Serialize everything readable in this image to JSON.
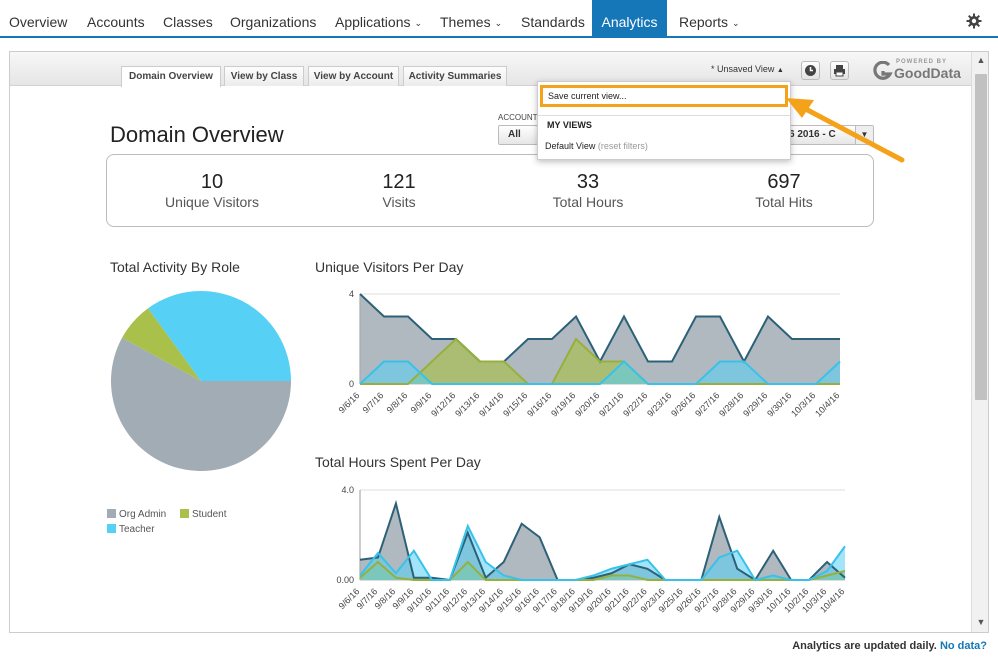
{
  "nav": {
    "items": [
      {
        "label": "Overview",
        "caret": false
      },
      {
        "label": "Accounts",
        "caret": false
      },
      {
        "label": "Classes",
        "caret": false
      },
      {
        "label": "Organizations",
        "caret": false
      },
      {
        "label": "Applications",
        "caret": true
      },
      {
        "label": "Themes",
        "caret": true
      },
      {
        "label": "Standards",
        "caret": false
      },
      {
        "label": "Analytics",
        "caret": false
      },
      {
        "label": "Reports",
        "caret": true
      }
    ],
    "active": "Analytics",
    "settings_icon": "gear-icon",
    "caret_icon": "chevron-down-icon"
  },
  "toolbar": {
    "tabs": [
      "Domain Overview",
      "View by Class",
      "View by Account",
      "Activity Summaries"
    ],
    "active_tab": "Domain Overview",
    "view_label": "* Unsaved View",
    "view_caret": "▲",
    "schedule_icon": "clock-icon",
    "print_icon": "printer-icon",
    "brand_small": "POWERED BY",
    "brand_big": "GoodData"
  },
  "dropdown": {
    "save_label": "Save current view...",
    "section_header": "MY VIEWS",
    "default_view": "Default View",
    "default_note": "(reset filters)"
  },
  "page": {
    "title": "Domain Overview",
    "filter_label": "ACCOUNT",
    "filter_value": "All",
    "date_value": "6 2016 - C",
    "date_caret": "▼"
  },
  "kpis": [
    {
      "value": "10",
      "label": "Unique Visitors"
    },
    {
      "value": "121",
      "label": "Visits"
    },
    {
      "value": "33",
      "label": "Total Hours"
    },
    {
      "value": "697",
      "label": "Total Hits"
    }
  ],
  "colors": {
    "org_admin": "#a2acb5",
    "student": "#a9c04a",
    "teacher": "#56d0f5",
    "accent": "#1576b8",
    "highlight": "#f5a21b"
  },
  "footer": {
    "text": "Analytics are updated daily.",
    "link": "No data?"
  },
  "chart_data": [
    {
      "type": "pie",
      "title": "Total Activity By Role",
      "slices": [
        {
          "name": "Org Admin",
          "value": 58
        },
        {
          "name": "Student",
          "value": 7
        },
        {
          "name": "Teacher",
          "value": 35
        }
      ],
      "legend": "bottom-left"
    },
    {
      "type": "area",
      "title": "Unique Visitors Per Day",
      "ylim": [
        0,
        4
      ],
      "yticks": [
        "4",
        "0"
      ],
      "categories": [
        "9/6/16",
        "9/7/16",
        "9/8/16",
        "9/9/16",
        "9/12/16",
        "9/13/16",
        "9/14/16",
        "9/15/16",
        "9/16/16",
        "9/19/16",
        "9/20/16",
        "9/21/16",
        "9/22/16",
        "9/23/16",
        "9/26/16",
        "9/27/16",
        "9/28/16",
        "9/29/16",
        "9/30/16",
        "10/3/16",
        "10/4/16"
      ],
      "series": [
        {
          "name": "Org Admin",
          "values": [
            4,
            3,
            3,
            2,
            2,
            1,
            1,
            2,
            2,
            3,
            1,
            3,
            1,
            1,
            3,
            3,
            1,
            3,
            2,
            2,
            2
          ]
        },
        {
          "name": "Student",
          "values": [
            0,
            0,
            0,
            1,
            2,
            1,
            1,
            0,
            0,
            2,
            1,
            1,
            0,
            0,
            0,
            0,
            0,
            0,
            0,
            0,
            0
          ]
        },
        {
          "name": "Teacher",
          "values": [
            0,
            1,
            1,
            0,
            0,
            0,
            0,
            0,
            0,
            0,
            0,
            1,
            0,
            0,
            0,
            1,
            1,
            0,
            0,
            0,
            1
          ]
        }
      ],
      "grid": true
    },
    {
      "type": "area",
      "title": "Total Hours Spent Per Day",
      "ylim": [
        0,
        4
      ],
      "yticks": [
        "4.0",
        "0.00"
      ],
      "categories": [
        "9/6/16",
        "9/7/16",
        "9/8/16",
        "9/9/16",
        "9/10/16",
        "9/11/16",
        "9/12/16",
        "9/13/16",
        "9/14/16",
        "9/15/16",
        "9/16/16",
        "9/17/16",
        "9/18/16",
        "9/19/16",
        "9/20/16",
        "9/21/16",
        "9/22/16",
        "9/23/16",
        "9/25/16",
        "9/26/16",
        "9/27/16",
        "9/28/16",
        "9/29/16",
        "9/30/16",
        "10/1/16",
        "10/2/16",
        "10/3/16",
        "10/4/16"
      ],
      "series": [
        {
          "name": "Org Admin",
          "values": [
            0.9,
            1.0,
            3.4,
            0.1,
            0.1,
            0.0,
            2.1,
            0.1,
            0.8,
            2.5,
            1.9,
            0,
            0,
            0.1,
            0.3,
            0.7,
            0.5,
            0,
            0,
            0,
            2.8,
            0.5,
            0,
            1.3,
            0,
            0,
            0.8,
            0.1
          ]
        },
        {
          "name": "Student",
          "values": [
            0.1,
            0.8,
            0.1,
            0,
            0,
            0,
            0.8,
            0,
            0,
            0,
            0,
            0,
            0,
            0,
            0.2,
            0.2,
            0,
            0,
            0,
            0,
            0,
            0,
            0,
            0,
            0,
            0,
            0.2,
            0.4
          ]
        },
        {
          "name": "Teacher",
          "values": [
            0.2,
            1.2,
            0.3,
            1.3,
            0,
            0,
            2.4,
            0.8,
            0.2,
            0,
            0,
            0,
            0,
            0.2,
            0.5,
            0.7,
            0.9,
            0,
            0,
            0,
            1.0,
            1.3,
            0,
            0.2,
            0,
            0,
            0.4,
            1.5
          ]
        }
      ],
      "grid": true
    }
  ]
}
